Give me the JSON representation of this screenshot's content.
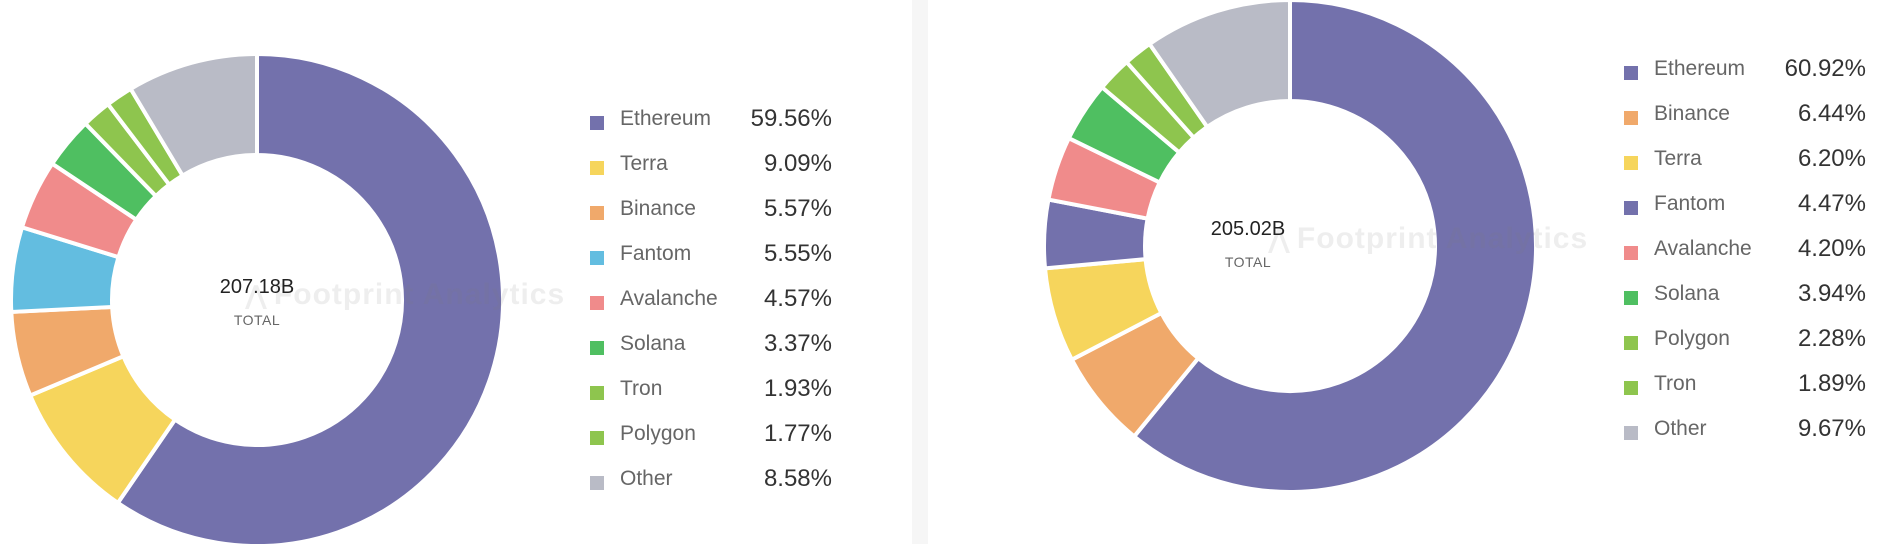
{
  "colors": {
    "ethereum": "#7371ac",
    "terra": "#f6d55c",
    "binance": "#f0a96b",
    "fantom_blue": "#63bde0",
    "fantom_purple": "#7371ac",
    "avalanche": "#f08b8b",
    "solana": "#4fbf61",
    "tron": "#8ec54e",
    "polygon": "#8ec54e",
    "other": "#b9bbc6"
  },
  "watermark": "Footprint Analytics",
  "chart_data": [
    {
      "type": "pie",
      "title": "",
      "center_value": "207.18B",
      "center_label": "TOTAL",
      "legend_position": "right",
      "categories": [
        "Ethereum",
        "Terra",
        "Binance",
        "Fantom",
        "Avalanche",
        "Solana",
        "Tron",
        "Polygon",
        "Other"
      ],
      "labels": [
        "59.56%",
        "9.09%",
        "5.57%",
        "5.55%",
        "4.57%",
        "3.37%",
        "1.93%",
        "1.77%",
        "8.58%"
      ],
      "values": [
        59.56,
        9.09,
        5.57,
        5.55,
        4.57,
        3.37,
        1.93,
        1.77,
        8.58
      ],
      "colors": [
        "#7371ac",
        "#f6d55c",
        "#f0a96b",
        "#63bde0",
        "#f08b8b",
        "#4fbf61",
        "#8ec54e",
        "#8ec54e",
        "#b9bbc6"
      ]
    },
    {
      "type": "pie",
      "title": "",
      "center_value": "205.02B",
      "center_label": "TOTAL",
      "legend_position": "right",
      "categories": [
        "Ethereum",
        "Binance",
        "Terra",
        "Fantom",
        "Avalanche",
        "Solana",
        "Polygon",
        "Tron",
        "Other"
      ],
      "labels": [
        "60.92%",
        "6.44%",
        "6.20%",
        "4.47%",
        "4.20%",
        "3.94%",
        "2.28%",
        "1.89%",
        "9.67%"
      ],
      "values": [
        60.92,
        6.44,
        6.2,
        4.47,
        4.2,
        3.94,
        2.28,
        1.89,
        9.67
      ],
      "colors": [
        "#7371ac",
        "#f0a96b",
        "#f6d55c",
        "#7371ac",
        "#f08b8b",
        "#4fbf61",
        "#8ec54e",
        "#8ec54e",
        "#b9bbc6"
      ]
    }
  ]
}
